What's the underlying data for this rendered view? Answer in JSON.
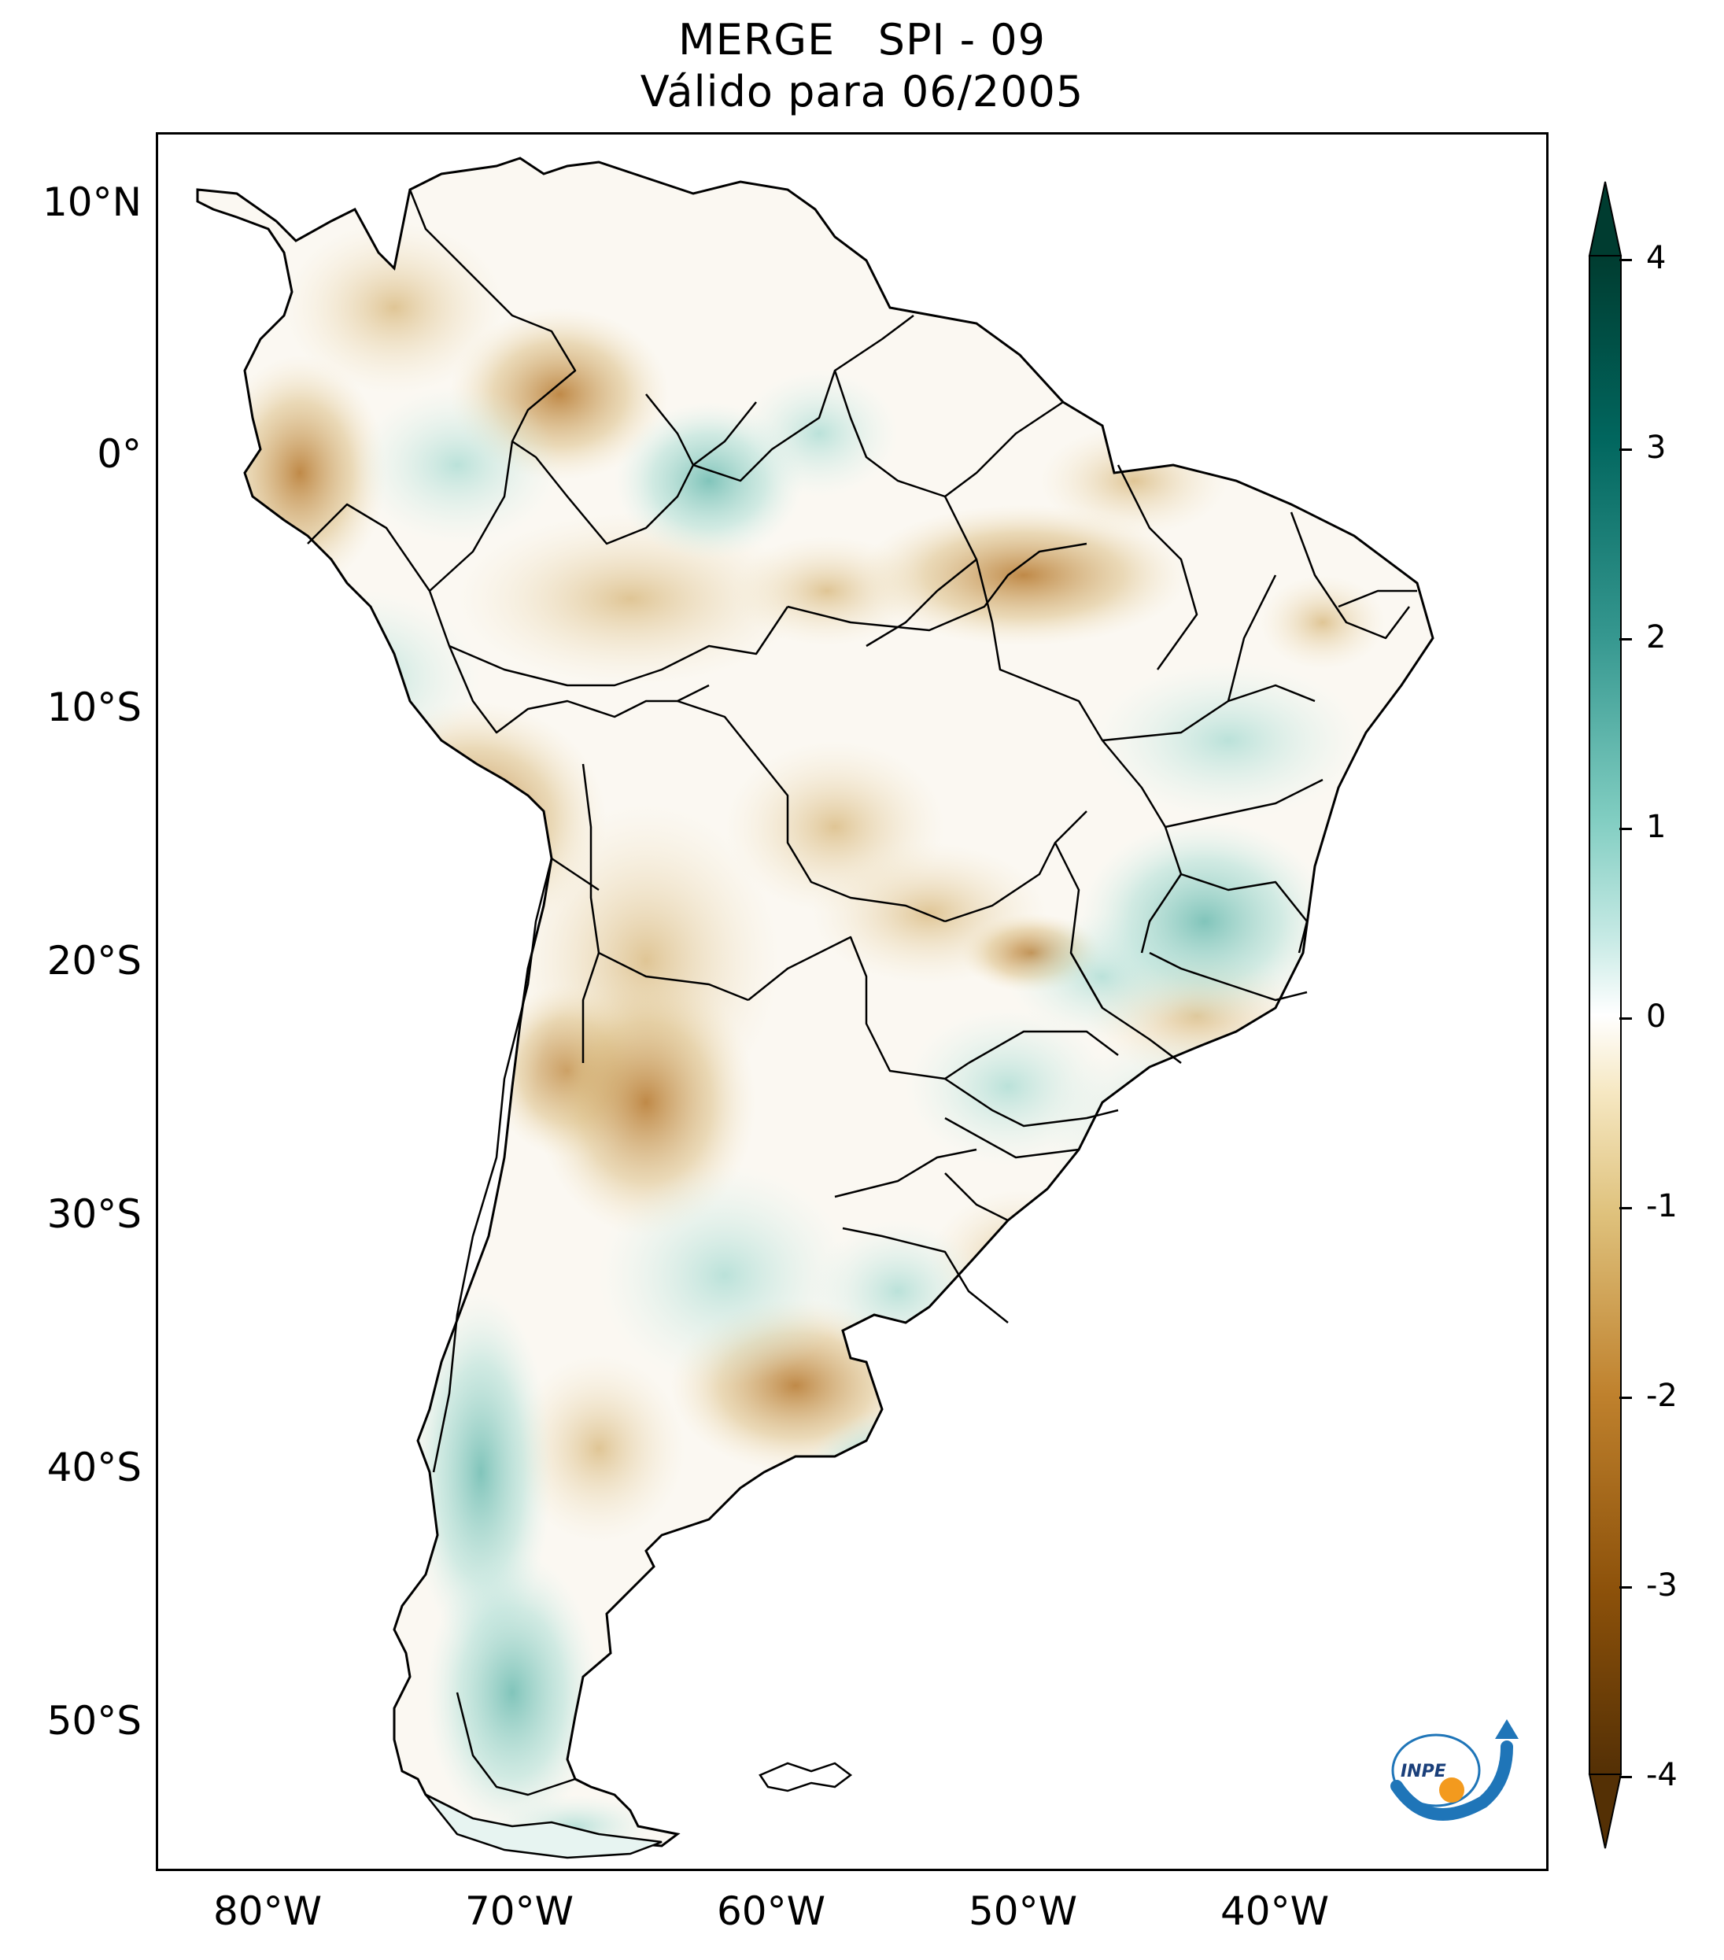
{
  "title": {
    "line1": "MERGE   SPI - 09",
    "line2": "Válido para 06/2005"
  },
  "axes": {
    "lat_labels": [
      "10°N",
      "0°",
      "10°S",
      "20°S",
      "30°S",
      "40°S",
      "50°S"
    ],
    "lon_labels": [
      "80°W",
      "70°W",
      "60°W",
      "50°W",
      "40°W"
    ]
  },
  "colorbar": {
    "min": -4,
    "max": 4,
    "labels": [
      "4",
      "3",
      "2",
      "1",
      "0",
      "-1",
      "-2",
      "-3",
      "-4"
    ],
    "colors": [
      "#543005",
      "#8c510a",
      "#bf812d",
      "#dfc27d",
      "#f6e8c3",
      "#ffffff",
      "#c7eae5",
      "#80cdc1",
      "#35978f",
      "#01665e",
      "#003c30"
    ]
  },
  "logo": {
    "text": "INPE"
  }
}
